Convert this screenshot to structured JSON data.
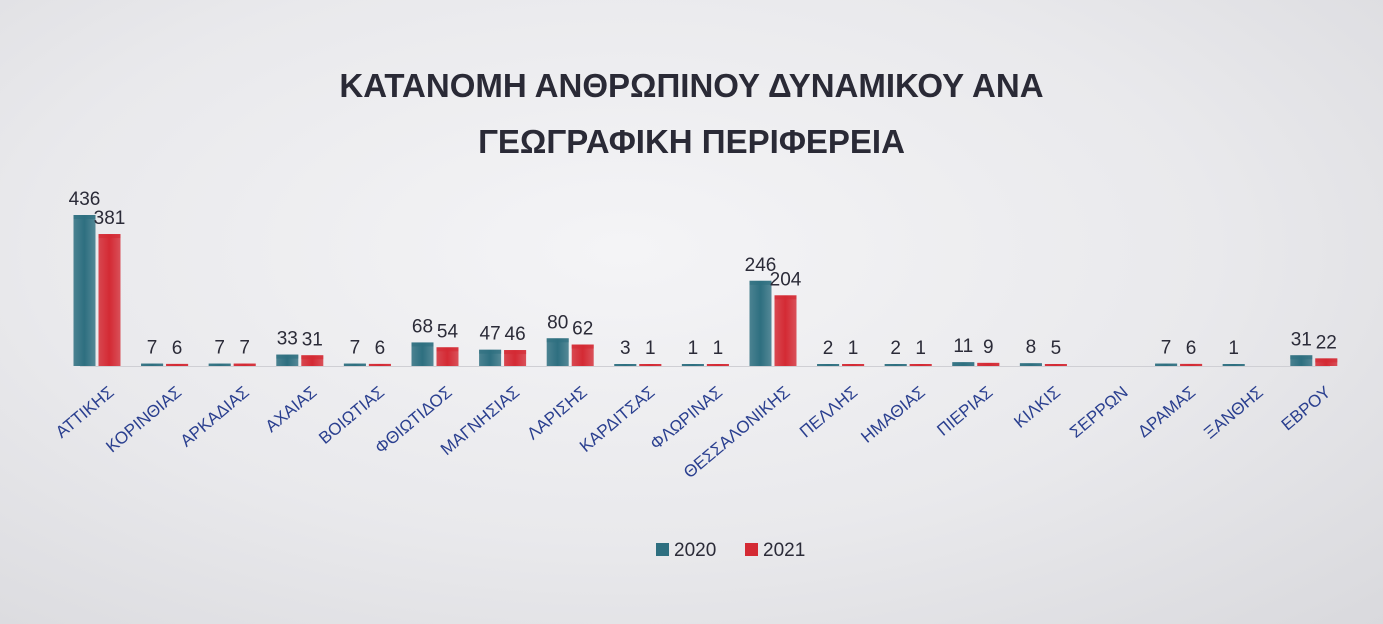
{
  "chart_data": {
    "type": "bar",
    "title": [
      "ΚΑΤΑΝΟΜΗ ΑΝΘΡΩΠΙΝΟΥ ΔΥΝΑΜΙΚΟΥ ΑΝΑ",
      "ΓΕΩΓΡΑΦΙΚΗ ΠΕΡΙΦΕΡΕΙΑ"
    ],
    "categories": [
      "ΑΤΤΙΚΗΣ",
      "ΚΟΡΙΝΘΙΑΣ",
      "ΑΡΚΑΔΙΑΣ",
      "ΑΧΑΙΑΣ",
      "ΒΟΙΩΤΙΑΣ",
      "ΦΘΙΩΤΙΔΟΣ",
      "ΜΑΓΝΗΣΙΑΣ",
      "ΛΑΡΙΣΗΣ",
      "ΚΑΡΔΙΤΣΑΣ",
      "ΦΛΩΡΙΝΑΣ",
      "ΘΕΣΣΑΛΟΝΙΚΗΣ",
      "ΠΕΛΛΗΣ",
      "ΗΜΑΘΙΑΣ",
      "ΠΙΕΡΙΑΣ",
      "ΚΙΛΚΙΣ",
      "ΣΕΡΡΩΝ",
      "ΔΡΑΜΑΣ",
      "ΞΑΝΘΗΣ",
      "ΕΒΡΟΥ"
    ],
    "series": [
      {
        "name": "2020",
        "color": "#2e6f80",
        "values": [
          436,
          7,
          7,
          33,
          7,
          68,
          47,
          80,
          3,
          1,
          246,
          2,
          2,
          11,
          8,
          null,
          7,
          1,
          31
        ]
      },
      {
        "name": "2021",
        "color": "#d42a34",
        "values": [
          381,
          6,
          7,
          31,
          6,
          54,
          46,
          62,
          1,
          1,
          204,
          1,
          1,
          9,
          5,
          null,
          6,
          null,
          22
        ]
      }
    ],
    "xlabel": "",
    "ylabel": "",
    "ylim": [
      0,
      450
    ],
    "grid": false,
    "legend": "bottom"
  }
}
